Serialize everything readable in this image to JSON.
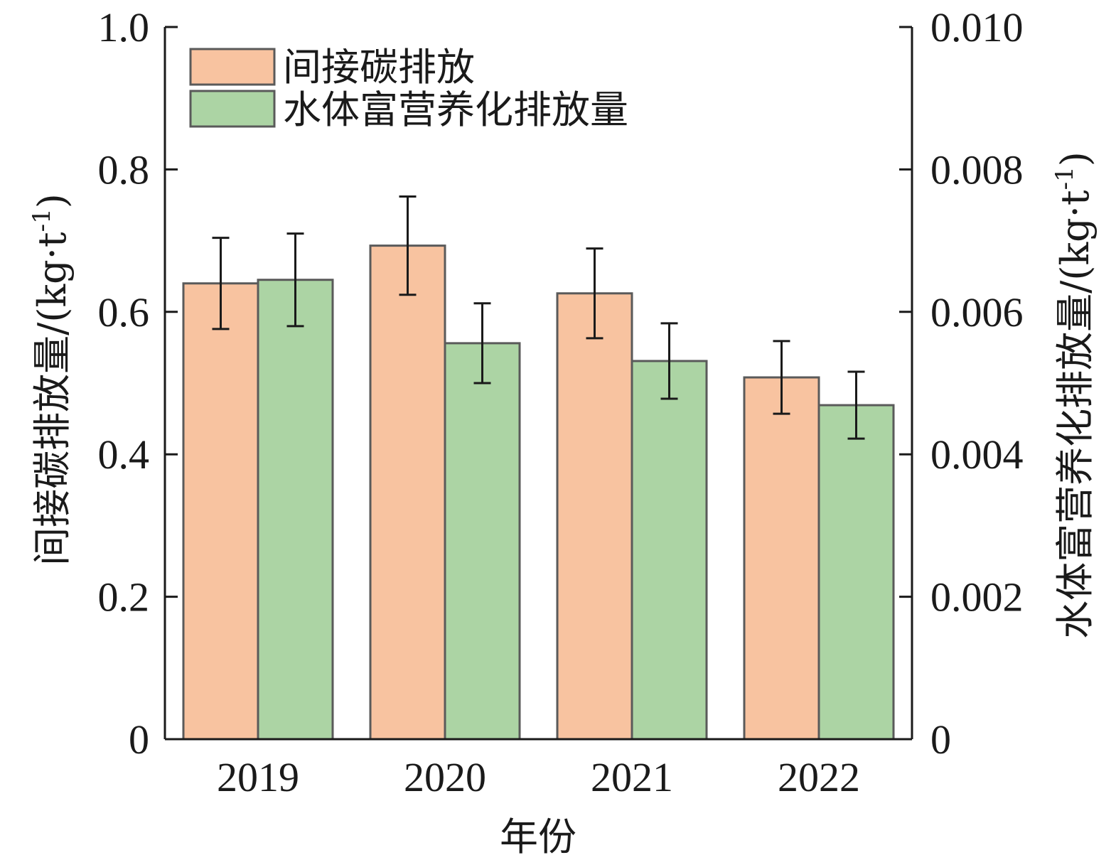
{
  "chart_data": {
    "type": "bar",
    "categories": [
      "2019",
      "2020",
      "2021",
      "2022"
    ],
    "xlabel": "年份",
    "ylabel_left": "间接碳排放量/(kg·t",
    "ylabel_right": "水体富营养化排放量/(kg·t",
    "ylabel_superscript": "-1",
    "ylabel_close": ")",
    "ylim_left": [
      0,
      1.0
    ],
    "ylim_right": [
      0,
      0.01
    ],
    "yticks_left": [
      "0",
      "0.2",
      "0.4",
      "0.6",
      "0.8",
      "1.0"
    ],
    "yticks_right": [
      "0",
      "0.002",
      "0.004",
      "0.006",
      "0.008",
      "0.010"
    ],
    "grid": false,
    "legend_position": "top-left",
    "series": [
      {
        "name": "间接碳排放",
        "axis": "left",
        "color": "#f8c3a0",
        "values": [
          0.64,
          0.693,
          0.626,
          0.508
        ],
        "error": [
          0.064,
          0.069,
          0.063,
          0.051
        ]
      },
      {
        "name": "水体富营养化排放量",
        "axis": "right",
        "color": "#acd4a4",
        "values": [
          0.00645,
          0.00556,
          0.00531,
          0.00469
        ],
        "error": [
          0.00065,
          0.00056,
          0.00053,
          0.00047
        ]
      }
    ]
  }
}
